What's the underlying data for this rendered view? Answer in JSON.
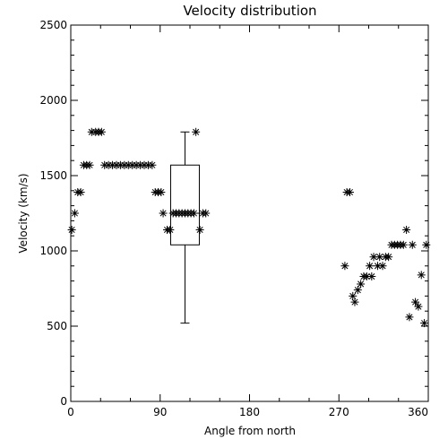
{
  "chart_data": {
    "type": "scatter",
    "title": "Velocity distribution",
    "xlabel": "Angle from north",
    "ylabel": "Velocity (km/s)",
    "xlim": [
      0,
      360
    ],
    "ylim": [
      0,
      2500
    ],
    "xticks": [
      0,
      90,
      180,
      270,
      360
    ],
    "yticks": [
      0,
      500,
      1000,
      1500,
      2000,
      2500
    ],
    "grid": false,
    "marker": "asterisk",
    "colors": {
      "foreground": "#000000",
      "background": "#ffffff"
    },
    "points": [
      [
        1,
        1140
      ],
      [
        4,
        1250
      ],
      [
        7,
        1390
      ],
      [
        10,
        1390
      ],
      [
        13,
        1570
      ],
      [
        16,
        1570
      ],
      [
        19,
        1570
      ],
      [
        21,
        1790
      ],
      [
        25,
        1790
      ],
      [
        28,
        1790
      ],
      [
        31,
        1790
      ],
      [
        34,
        1570
      ],
      [
        38,
        1570
      ],
      [
        42,
        1570
      ],
      [
        46,
        1570
      ],
      [
        50,
        1570
      ],
      [
        54,
        1570
      ],
      [
        58,
        1570
      ],
      [
        62,
        1570
      ],
      [
        66,
        1570
      ],
      [
        70,
        1570
      ],
      [
        74,
        1570
      ],
      [
        78,
        1570
      ],
      [
        82,
        1570
      ],
      [
        85,
        1390
      ],
      [
        88,
        1390
      ],
      [
        91,
        1390
      ],
      [
        93,
        1250
      ],
      [
        97,
        1140
      ],
      [
        100,
        1140
      ],
      [
        103,
        1250
      ],
      [
        106,
        1250
      ],
      [
        109,
        1250
      ],
      [
        112,
        1250
      ],
      [
        115,
        1250
      ],
      [
        118,
        1250
      ],
      [
        121,
        1250
      ],
      [
        124,
        1250
      ],
      [
        126,
        1790
      ],
      [
        130,
        1140
      ],
      [
        133,
        1250
      ],
      [
        136,
        1250
      ],
      [
        276,
        900
      ],
      [
        278,
        1390
      ],
      [
        281,
        1390
      ],
      [
        284,
        700
      ],
      [
        286,
        660
      ],
      [
        289,
        740
      ],
      [
        292,
        780
      ],
      [
        295,
        830
      ],
      [
        298,
        830
      ],
      [
        301,
        900
      ],
      [
        303,
        830
      ],
      [
        305,
        960
      ],
      [
        309,
        900
      ],
      [
        311,
        960
      ],
      [
        314,
        900
      ],
      [
        317,
        960
      ],
      [
        320,
        960
      ],
      [
        323,
        1040
      ],
      [
        326,
        1040
      ],
      [
        329,
        1040
      ],
      [
        332,
        1040
      ],
      [
        335,
        1040
      ],
      [
        338,
        1140
      ],
      [
        341,
        560
      ],
      [
        344,
        1040
      ],
      [
        347,
        660
      ],
      [
        350,
        630
      ],
      [
        353,
        840
      ],
      [
        356,
        520
      ],
      [
        358,
        1040
      ]
    ],
    "boxplot": {
      "x": 115,
      "min": 520,
      "q1": 1040,
      "median": 1250,
      "q3": 1570,
      "max": 1790
    }
  }
}
